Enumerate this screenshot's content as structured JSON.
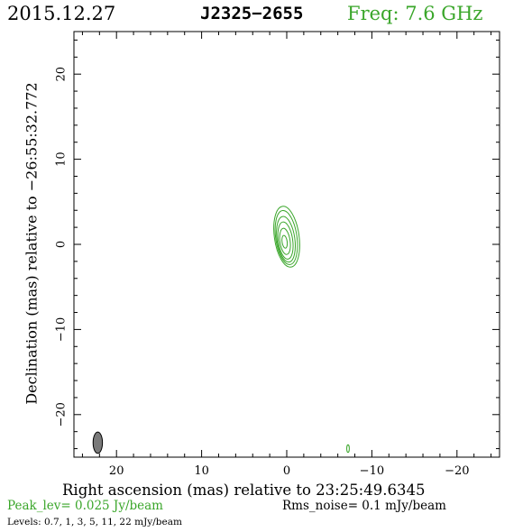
{
  "header": {
    "date": "2015.12.27",
    "source": "J2325−2655",
    "freq": "Freq: 7.6 GHz"
  },
  "footer": {
    "peak": "Peak_lev=  0.025 Jy/beam",
    "rms": "Rms_noise=  0.1 mJy/beam",
    "levels": "Levels: 0.7,   1,   3,   5,   11,   22 mJy/beam"
  },
  "colors": {
    "contour": "#3aa62a",
    "beam_fill": "#7a7a7a",
    "axis": "#000000"
  },
  "chart_data": {
    "type": "contour",
    "title": "J2325−2655",
    "xlabel": "Right ascension (mas) relative to 23:25:49.6345",
    "ylabel": "Declination (mas) relative to −26:55:32.772",
    "xlim": [
      25,
      -25
    ],
    "ylim": [
      -25,
      25
    ],
    "xticks": [
      20,
      10,
      0,
      -10,
      -20
    ],
    "yticks": [
      20,
      10,
      0,
      -10,
      -20
    ],
    "xtick_labels": [
      "20",
      "10",
      "0",
      "−10",
      "−20"
    ],
    "ytick_labels": [
      "20",
      "10",
      "0",
      "−10",
      "−20"
    ],
    "levels_mJy": [
      0.7,
      1,
      3,
      5,
      11,
      22
    ],
    "peak_Jy_per_beam": 0.025,
    "rms_mJy_per_beam": 0.1,
    "contours": [
      {
        "level": 0.7,
        "center": [
          0.0,
          0.9
        ],
        "half_width": 1.45,
        "half_height": 3.6,
        "tilt_deg": -8
      },
      {
        "level": 1,
        "center": [
          0.05,
          0.8
        ],
        "half_width": 1.25,
        "half_height": 3.2,
        "tilt_deg": -8
      },
      {
        "level": 3,
        "center": [
          0.1,
          0.6
        ],
        "half_width": 1.05,
        "half_height": 2.7,
        "tilt_deg": -8
      },
      {
        "level": 5,
        "center": [
          0.15,
          0.45
        ],
        "half_width": 0.85,
        "half_height": 2.2,
        "tilt_deg": -8
      },
      {
        "level": 11,
        "center": [
          0.2,
          0.35
        ],
        "half_width": 0.6,
        "half_height": 1.55,
        "tilt_deg": -8
      },
      {
        "level": 22,
        "center": [
          0.25,
          0.3
        ],
        "half_width": 0.3,
        "half_height": 0.75,
        "tilt_deg": -8
      }
    ],
    "extra_contours": [
      {
        "level": 0.7,
        "center": [
          -7.2,
          -24.0
        ],
        "half_width": 0.15,
        "half_height": 0.45,
        "tilt_deg": 0
      }
    ],
    "beam": {
      "center": [
        22.2,
        -23.3
      ],
      "major_mas": 2.5,
      "minor_mas": 1.1,
      "pa_deg": 0
    }
  }
}
